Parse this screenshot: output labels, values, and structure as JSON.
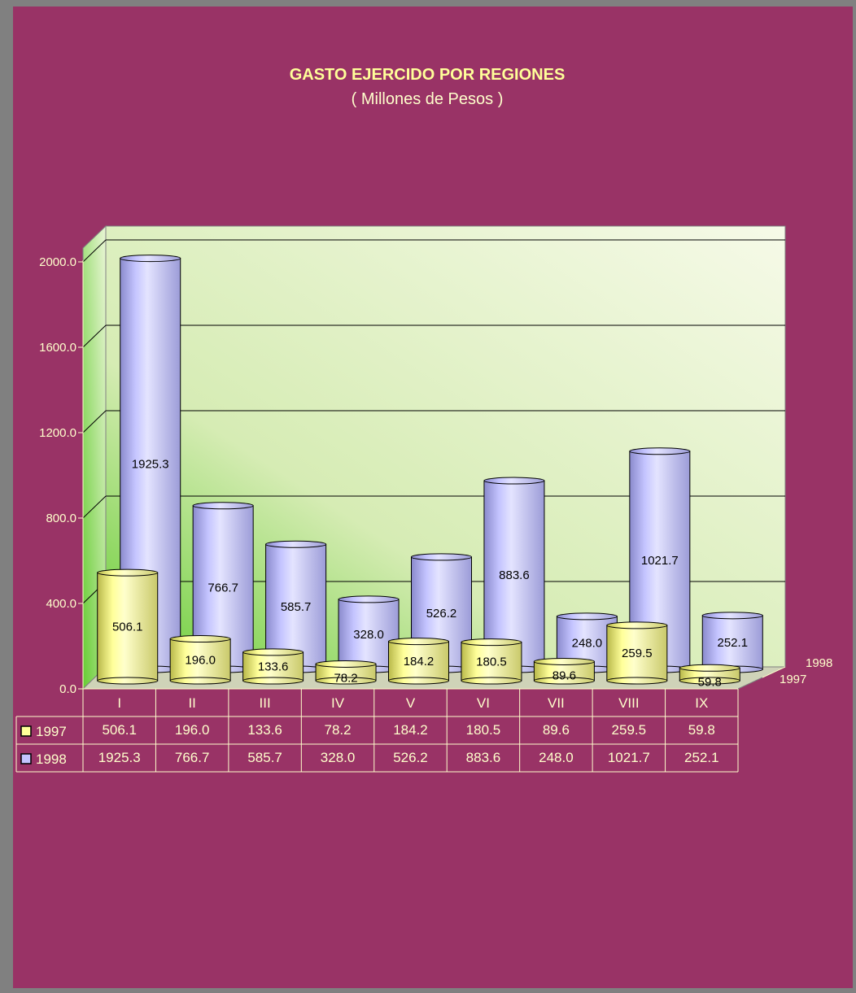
{
  "colors": {
    "background": "#993366",
    "text": "#ffffcc",
    "title": "#ffff99",
    "series_1997": "#ffff99",
    "series_1998": "#c4c4ff"
  },
  "chart_data": {
    "type": "bar",
    "title": "GASTO EJERCIDO POR REGIONES",
    "subtitle": "( Millones de Pesos )",
    "categories": [
      "I",
      "II",
      "III",
      "IV",
      "V",
      "VI",
      "VII",
      "VIII",
      "IX"
    ],
    "series": [
      {
        "name": "1997",
        "values": [
          506.1,
          196.0,
          133.6,
          78.2,
          184.2,
          180.5,
          89.6,
          259.5,
          59.8
        ]
      },
      {
        "name": "1998",
        "values": [
          1925.3,
          766.7,
          585.7,
          328.0,
          526.2,
          883.6,
          248.0,
          1021.7,
          252.1
        ]
      }
    ],
    "yticks": [
      "0.0",
      "400.0",
      "800.0",
      "1200.0",
      "1600.0",
      "2000.0"
    ],
    "ylim": [
      0,
      2000
    ],
    "grid": true,
    "legend": "data-table",
    "depth_labels": [
      "1998",
      "1997"
    ]
  }
}
